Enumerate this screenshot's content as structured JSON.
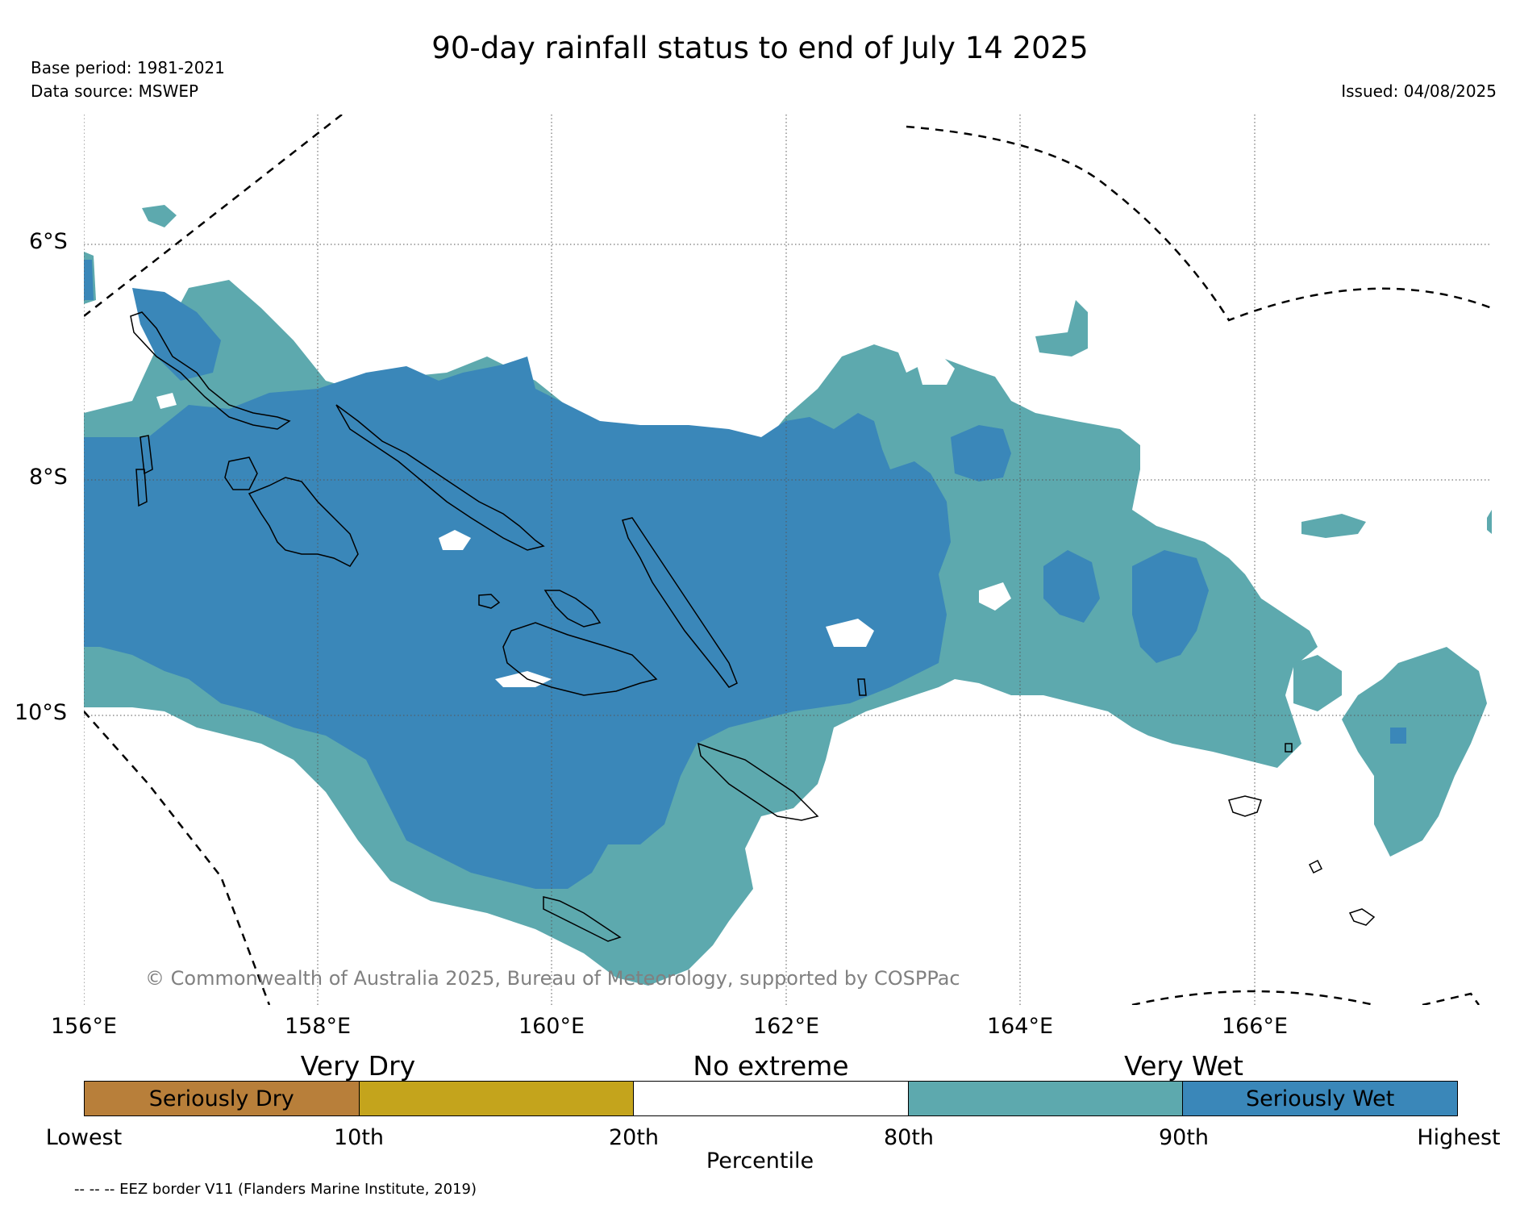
{
  "title": "90-day rainfall status to end of July 14 2025",
  "meta": {
    "base_period": "Base period: 1981-2021",
    "data_source": "Data source: MSWEP",
    "issued": "Issued: 04/08/2025"
  },
  "map": {
    "lat_labels": [
      "6°S",
      "8°S",
      "10°S"
    ],
    "lon_labels": [
      "156°E",
      "158°E",
      "160°E",
      "162°E",
      "164°E",
      "166°E"
    ],
    "copyright": "© Commonwealth of Australia 2025, Bureau of Meteorology, supported by COSPPac",
    "colors": {
      "seriously_wet": "#3a87b9",
      "very_wet": "#5da9ae",
      "no_extreme": "#ffffff",
      "very_dry": "#c4a41c",
      "seriously_dry": "#b87f3a"
    }
  },
  "legend": {
    "category_labels": [
      "Very Dry",
      "No extreme",
      "Very Wet"
    ],
    "segments": [
      {
        "label": "Seriously Dry",
        "color": "#b87f3a"
      },
      {
        "label": "",
        "color": "#c4a41c"
      },
      {
        "label": "",
        "color": "#ffffff"
      },
      {
        "label": "",
        "color": "#5da9ae"
      },
      {
        "label": "Seriously Wet",
        "color": "#3a87b9"
      }
    ],
    "ticks": [
      "Lowest",
      "10th",
      "20th",
      "80th",
      "90th",
      "Highest"
    ],
    "title": "Percentile"
  },
  "eez_note": "-- -- -- EEZ border V11 (Flanders Marine Institute, 2019)"
}
